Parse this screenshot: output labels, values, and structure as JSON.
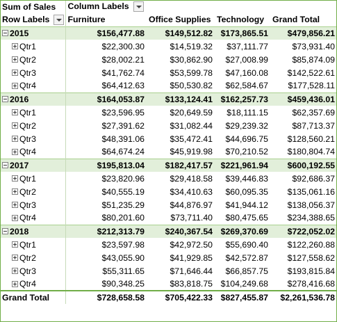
{
  "pivot": {
    "value_field": "Sum of Sales",
    "column_labels": "Column Labels",
    "row_labels": "Row Labels",
    "columns": [
      "Furniture",
      "Office Supplies",
      "Technology",
      "Grand Total"
    ],
    "years": [
      {
        "label": "2015",
        "totals": [
          "$156,477.88",
          "$149,512.82",
          "$173,865.51",
          "$479,856.21"
        ],
        "quarters": [
          {
            "label": "Qtr1",
            "values": [
              "$22,300.30",
              "$14,519.32",
              "$37,111.77",
              "$73,931.40"
            ]
          },
          {
            "label": "Qtr2",
            "values": [
              "$28,002.21",
              "$30,862.90",
              "$27,008.99",
              "$85,874.09"
            ]
          },
          {
            "label": "Qtr3",
            "values": [
              "$41,762.74",
              "$53,599.78",
              "$47,160.08",
              "$142,522.61"
            ]
          },
          {
            "label": "Qtr4",
            "values": [
              "$64,412.63",
              "$50,530.82",
              "$62,584.67",
              "$177,528.11"
            ]
          }
        ]
      },
      {
        "label": "2016",
        "totals": [
          "$164,053.87",
          "$133,124.41",
          "$162,257.73",
          "$459,436.01"
        ],
        "quarters": [
          {
            "label": "Qtr1",
            "values": [
              "$23,596.95",
              "$20,649.59",
              "$18,111.15",
              "$62,357.69"
            ]
          },
          {
            "label": "Qtr2",
            "values": [
              "$27,391.62",
              "$31,082.44",
              "$29,239.32",
              "$87,713.37"
            ]
          },
          {
            "label": "Qtr3",
            "values": [
              "$48,391.06",
              "$35,472.41",
              "$44,696.75",
              "$128,560.21"
            ]
          },
          {
            "label": "Qtr4",
            "values": [
              "$64,674.24",
              "$45,919.98",
              "$70,210.52",
              "$180,804.74"
            ]
          }
        ]
      },
      {
        "label": "2017",
        "totals": [
          "$195,813.04",
          "$182,417.57",
          "$221,961.94",
          "$600,192.55"
        ],
        "quarters": [
          {
            "label": "Qtr1",
            "values": [
              "$23,820.96",
              "$29,418.58",
              "$39,446.83",
              "$92,686.37"
            ]
          },
          {
            "label": "Qtr2",
            "values": [
              "$40,555.19",
              "$34,410.63",
              "$60,095.35",
              "$135,061.16"
            ]
          },
          {
            "label": "Qtr3",
            "values": [
              "$51,235.29",
              "$44,876.97",
              "$41,944.12",
              "$138,056.37"
            ]
          },
          {
            "label": "Qtr4",
            "values": [
              "$80,201.60",
              "$73,711.40",
              "$80,475.65",
              "$234,388.65"
            ]
          }
        ]
      },
      {
        "label": "2018",
        "totals": [
          "$212,313.79",
          "$240,367.54",
          "$269,370.69",
          "$722,052.02"
        ],
        "quarters": [
          {
            "label": "Qtr1",
            "values": [
              "$23,597.98",
              "$42,972.50",
              "$55,690.40",
              "$122,260.88"
            ]
          },
          {
            "label": "Qtr2",
            "values": [
              "$43,055.90",
              "$41,929.85",
              "$42,572.87",
              "$127,558.62"
            ]
          },
          {
            "label": "Qtr3",
            "values": [
              "$55,311.65",
              "$71,646.44",
              "$66,857.75",
              "$193,815.84"
            ]
          },
          {
            "label": "Qtr4",
            "values": [
              "$90,348.25",
              "$83,818.75",
              "$104,249.68",
              "$278,416.68"
            ]
          }
        ]
      }
    ],
    "grand_total": {
      "label": "Grand Total",
      "values": [
        "$728,658.58",
        "$705,422.33",
        "$827,455.87",
        "$2,261,536.78"
      ]
    },
    "colors": {
      "accent": "#70ad47",
      "year_row_fill": "#e2efda"
    }
  }
}
